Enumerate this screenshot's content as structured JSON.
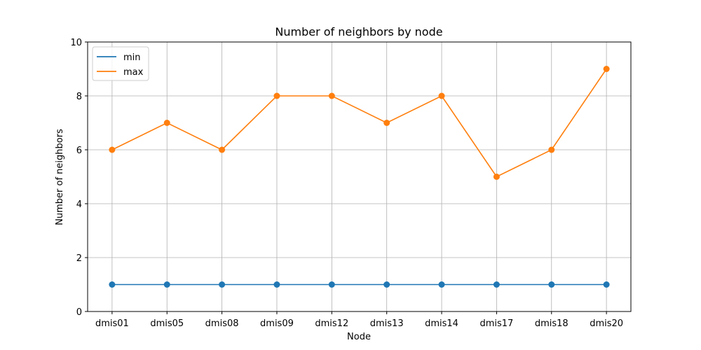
{
  "chart_data": {
    "type": "line",
    "title": "Number of neighbors by node",
    "xlabel": "Node",
    "ylabel": "Number of neighbors",
    "categories": [
      "dmis01",
      "dmis05",
      "dmis08",
      "dmis09",
      "dmis12",
      "dmis13",
      "dmis14",
      "dmis17",
      "dmis18",
      "dmis20"
    ],
    "ylim": [
      0,
      10
    ],
    "yticks": [
      0,
      2,
      4,
      6,
      8,
      10
    ],
    "grid": true,
    "legend_position": "top-left",
    "series": [
      {
        "name": "min",
        "color": "#1f77b4",
        "values": [
          1,
          1,
          1,
          1,
          1,
          1,
          1,
          1,
          1,
          1
        ]
      },
      {
        "name": "max",
        "color": "#ff7f0e",
        "values": [
          6,
          7,
          6,
          8,
          8,
          7,
          8,
          5,
          6,
          9
        ]
      }
    ]
  }
}
